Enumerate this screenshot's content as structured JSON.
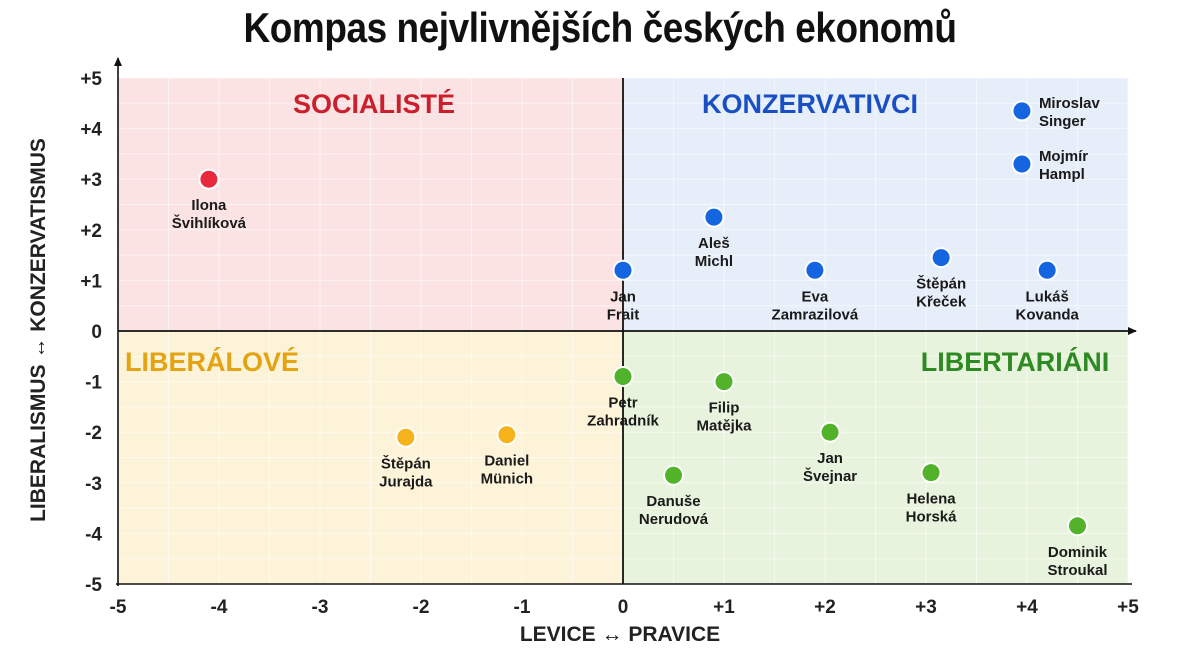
{
  "chart_data": {
    "type": "scatter",
    "title": "Kompas nejvlivnějších českých ekonomů",
    "xlabel": "LEVICE ↔ PRAVICE",
    "ylabel": "LIBERALISMUS ↔ KONZERVATISMUS",
    "xlim": [
      -5,
      5
    ],
    "ylim": [
      -5,
      5
    ],
    "x_ticks": [
      "-5",
      "-4",
      "-3",
      "-2",
      "-1",
      "0",
      "+1",
      "+2",
      "+3",
      "+4",
      "+5"
    ],
    "y_ticks": [
      "+5",
      "+4",
      "+3",
      "+2",
      "+1",
      "0",
      "-1",
      "-2",
      "-3",
      "-4",
      "-5"
    ],
    "grid": true,
    "quadrants": [
      {
        "name": "SOCIALISTÉ",
        "position": "top-left",
        "color": "#cc1f2e",
        "fill": "#fbe3e4"
      },
      {
        "name": "KONZERVATIVCI",
        "position": "top-right",
        "color": "#1a4fc4",
        "fill": "#e6eefa"
      },
      {
        "name": "LIBERÁLOVÉ",
        "position": "bottom-left",
        "color": "#e3a312",
        "fill": "#fdf3d8"
      },
      {
        "name": "LIBERTARIÁNI",
        "position": "bottom-right",
        "color": "#2e8a22",
        "fill": "#e7f3dc"
      }
    ],
    "points": [
      {
        "label": [
          "Ilona",
          "Švihlíková"
        ],
        "x": -4.1,
        "y": 3.0,
        "group": "SOCIALISTÉ",
        "color": "#e8283c"
      },
      {
        "label": [
          "Miroslav",
          "Singer"
        ],
        "x": 3.95,
        "y": 4.35,
        "group": "KONZERVATIVCI",
        "color": "#1565e0"
      },
      {
        "label": [
          "Mojmír",
          "Hampl"
        ],
        "x": 3.95,
        "y": 3.3,
        "group": "KONZERVATIVCI",
        "color": "#1565e0"
      },
      {
        "label": [
          "Aleš",
          "Michl"
        ],
        "x": 0.9,
        "y": 2.25,
        "group": "KONZERVATIVCI",
        "color": "#1565e0"
      },
      {
        "label": [
          "Jan",
          "Frait"
        ],
        "x": 0.0,
        "y": 1.2,
        "group": "KONZERVATIVCI",
        "color": "#1565e0"
      },
      {
        "label": [
          "Eva",
          "Zamrazilová"
        ],
        "x": 1.9,
        "y": 1.2,
        "group": "KONZERVATIVCI",
        "color": "#1565e0"
      },
      {
        "label": [
          "Štěpán",
          "Křeček"
        ],
        "x": 3.15,
        "y": 1.45,
        "group": "KONZERVATIVCI",
        "color": "#1565e0"
      },
      {
        "label": [
          "Lukáš",
          "Kovanda"
        ],
        "x": 4.2,
        "y": 1.2,
        "group": "KONZERVATIVCI",
        "color": "#1565e0"
      },
      {
        "label": [
          "Štěpán",
          "Jurajda"
        ],
        "x": -2.15,
        "y": -2.1,
        "group": "LIBERÁLOVÉ",
        "color": "#f5b21a"
      },
      {
        "label": [
          "Daniel",
          "Münich"
        ],
        "x": -1.15,
        "y": -2.05,
        "group": "LIBERÁLOVÉ",
        "color": "#f5b21a"
      },
      {
        "label": [
          "Petr",
          "Zahradník"
        ],
        "x": 0.0,
        "y": -0.9,
        "group": "LIBERTARIÁNI",
        "color": "#52b32a"
      },
      {
        "label": [
          "Filip",
          "Matějka"
        ],
        "x": 1.0,
        "y": -1.0,
        "group": "LIBERTARIÁNI",
        "color": "#52b32a"
      },
      {
        "label": [
          "Jan",
          "Švejnar"
        ],
        "x": 2.05,
        "y": -2.0,
        "group": "LIBERTARIÁNI",
        "color": "#52b32a"
      },
      {
        "label": [
          "Danuše",
          "Nerudová"
        ],
        "x": 0.5,
        "y": -2.85,
        "group": "LIBERTARIÁNI",
        "color": "#52b32a"
      },
      {
        "label": [
          "Helena",
          "Horská"
        ],
        "x": 3.05,
        "y": -2.8,
        "group": "LIBERTARIÁNI",
        "color": "#52b32a"
      },
      {
        "label": [
          "Dominik",
          "Stroukal"
        ],
        "x": 4.5,
        "y": -3.85,
        "group": "LIBERTARIÁNI",
        "color": "#52b32a"
      }
    ]
  }
}
